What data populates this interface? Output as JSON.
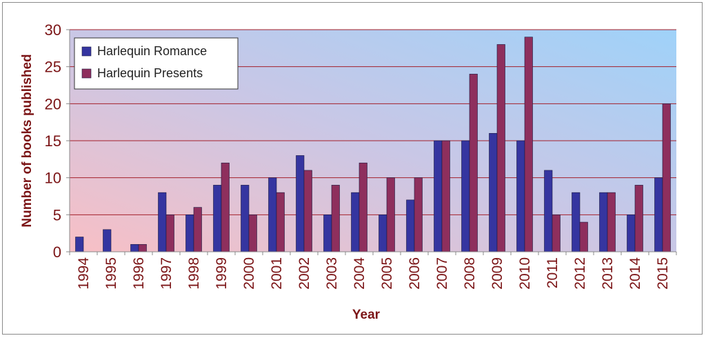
{
  "chart_data": {
    "type": "bar",
    "xlabel": "Year",
    "ylabel": "Number of books published",
    "ylim": [
      0,
      30
    ],
    "yticks": [
      0,
      5,
      10,
      15,
      20,
      25,
      30
    ],
    "grid": true,
    "legend_position": "top-left",
    "categories": [
      "1994",
      "1995",
      "1996",
      "1997",
      "1998",
      "1999",
      "2000",
      "2001",
      "2002",
      "2003",
      "2004",
      "2005",
      "2006",
      "2007",
      "2008",
      "2009",
      "2010",
      "2011",
      "2012",
      "2013",
      "2014",
      "2015"
    ],
    "series": [
      {
        "name": "Harlequin Romance",
        "color": "#3535a0",
        "values": [
          2,
          3,
          1,
          8,
          5,
          9,
          9,
          10,
          13,
          5,
          8,
          5,
          7,
          15,
          15,
          16,
          15,
          11,
          8,
          8,
          5,
          10
        ]
      },
      {
        "name": "Harlequin Presents",
        "color": "#8e2f5d",
        "values": [
          0,
          0,
          1,
          5,
          6,
          12,
          5,
          8,
          11,
          9,
          12,
          10,
          10,
          15,
          24,
          28,
          29,
          5,
          4,
          8,
          9,
          20
        ]
      }
    ],
    "colors": {
      "axis_text": "#7b1416",
      "gridline": "#a31f2a",
      "bg_gradient_left": "#f6c0c6",
      "bg_gradient_right": "#a2d3f8"
    }
  }
}
